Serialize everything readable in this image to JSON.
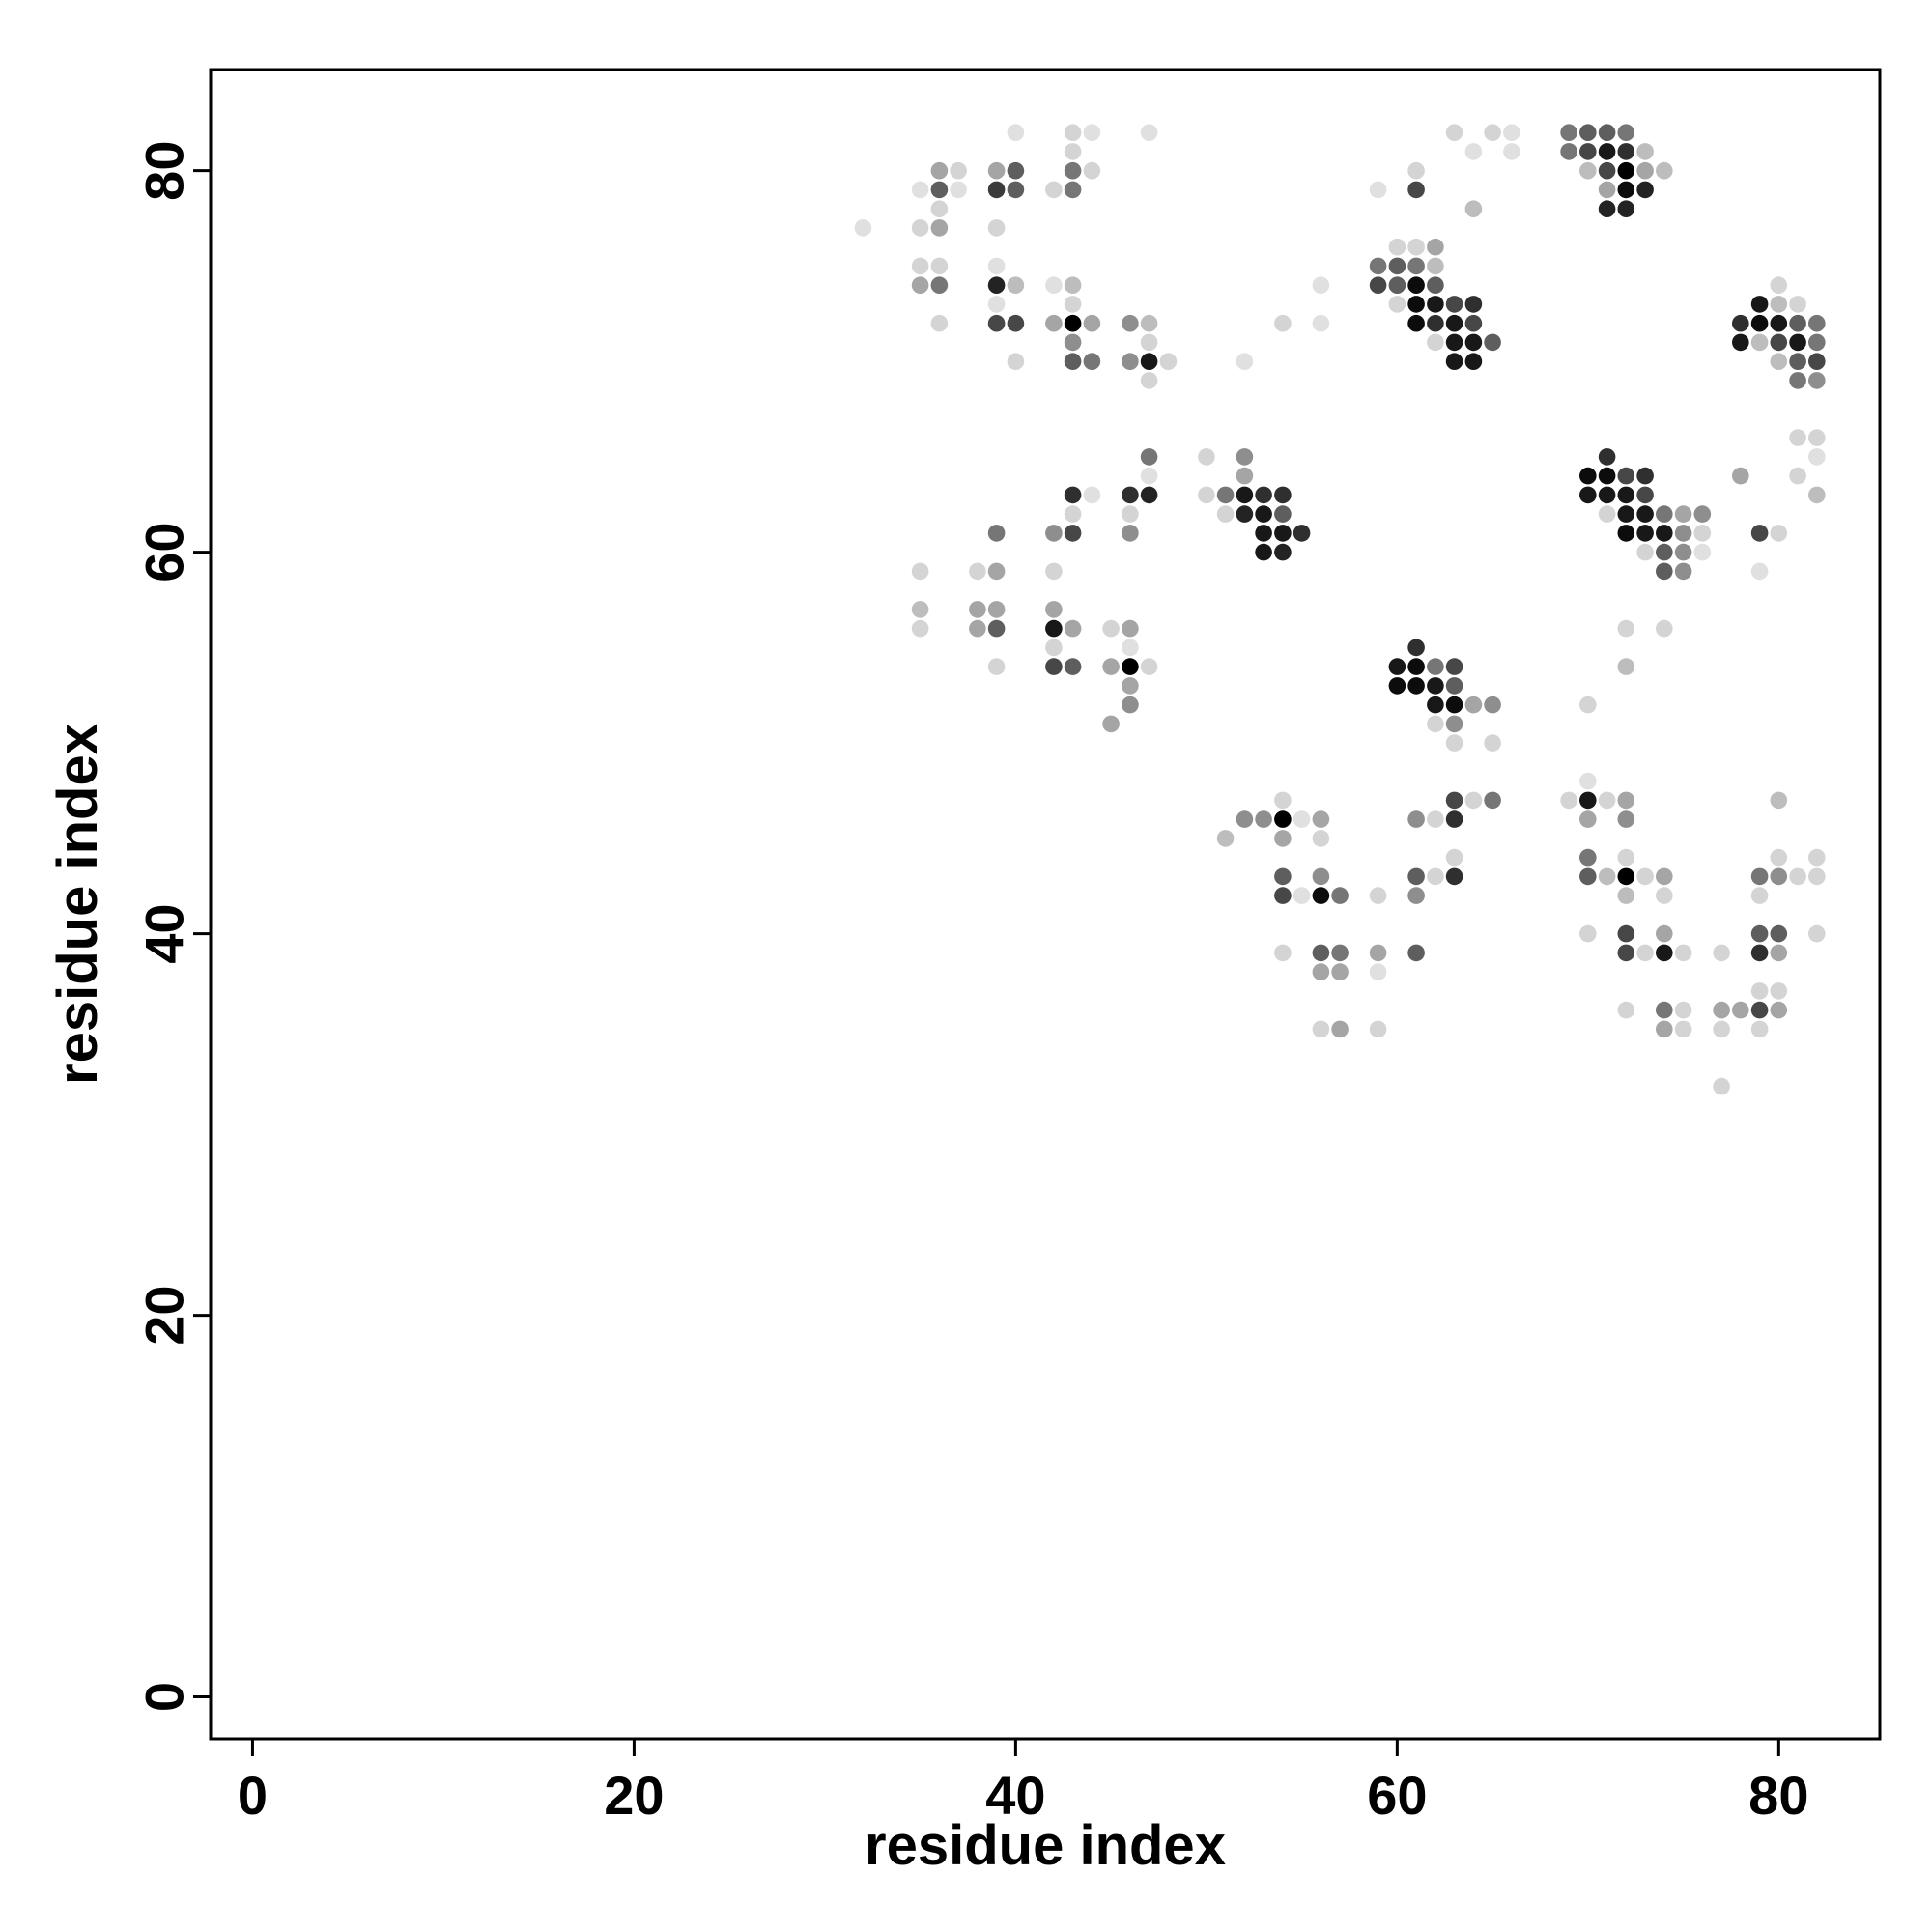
{
  "chart_data": {
    "type": "scatter",
    "title": "",
    "xlabel": "residue index",
    "ylabel": "residue index",
    "xlim": [
      -2.2,
      85.3
    ],
    "ylim": [
      -2.2,
      85.3
    ],
    "xticks": [
      0,
      20,
      40,
      60,
      80
    ],
    "yticks": [
      0,
      20,
      40,
      60,
      80
    ],
    "grid": false,
    "legend": "none",
    "color_scale": {
      "low": "#ececec",
      "high": "#000000",
      "value_range": [
        0,
        1
      ]
    },
    "points": [
      [
        32,
        77,
        0.05
      ],
      [
        35,
        79,
        0.05
      ],
      [
        36,
        80,
        0.3
      ],
      [
        37,
        80,
        0.1
      ],
      [
        36,
        79,
        0.6
      ],
      [
        37,
        79,
        0.05
      ],
      [
        36,
        78,
        0.1
      ],
      [
        35,
        77,
        0.1
      ],
      [
        36,
        77,
        0.3
      ],
      [
        35,
        75,
        0.1
      ],
      [
        36,
        75,
        0.1
      ],
      [
        35,
        74,
        0.3
      ],
      [
        36,
        74,
        0.5
      ],
      [
        36,
        72,
        0.1
      ],
      [
        40,
        82,
        0.05
      ],
      [
        39,
        80,
        0.3
      ],
      [
        40,
        80,
        0.6
      ],
      [
        39,
        79,
        0.75
      ],
      [
        40,
        79,
        0.6
      ],
      [
        39,
        77,
        0.1
      ],
      [
        39,
        75,
        0.05
      ],
      [
        39,
        74,
        0.85
      ],
      [
        40,
        74,
        0.2
      ],
      [
        39,
        73,
        0.05
      ],
      [
        39,
        72,
        0.7
      ],
      [
        40,
        72,
        0.7
      ],
      [
        40,
        70,
        0.1
      ],
      [
        43,
        82,
        0.1
      ],
      [
        44,
        82,
        0.05
      ],
      [
        43,
        81,
        0.1
      ],
      [
        43,
        80,
        0.5
      ],
      [
        44,
        80,
        0.1
      ],
      [
        42,
        79,
        0.1
      ],
      [
        43,
        79,
        0.5
      ],
      [
        42,
        74,
        0.05
      ],
      [
        43,
        74,
        0.2
      ],
      [
        43,
        73,
        0.1
      ],
      [
        42,
        72,
        0.3
      ],
      [
        43,
        72,
        1.0
      ],
      [
        44,
        72,
        0.3
      ],
      [
        43,
        71,
        0.4
      ],
      [
        43,
        70,
        0.6
      ],
      [
        44,
        70,
        0.5
      ],
      [
        47,
        82,
        0.05
      ],
      [
        46,
        72,
        0.4
      ],
      [
        47,
        72,
        0.2
      ],
      [
        47,
        71,
        0.1
      ],
      [
        46,
        70,
        0.4
      ],
      [
        47,
        70,
        0.9
      ],
      [
        48,
        70,
        0.1
      ],
      [
        47,
        69,
        0.1
      ],
      [
        63,
        82,
        0.1
      ],
      [
        65,
        82,
        0.1
      ],
      [
        66,
        82,
        0.05
      ],
      [
        64,
        81,
        0.05
      ],
      [
        66,
        81,
        0.05
      ],
      [
        61,
        80,
        0.1
      ],
      [
        59,
        79,
        0.05
      ],
      [
        61,
        79,
        0.7
      ],
      [
        64,
        78,
        0.2
      ],
      [
        69,
        82,
        0.5
      ],
      [
        70,
        82,
        0.6
      ],
      [
        71,
        82,
        0.6
      ],
      [
        72,
        82,
        0.5
      ],
      [
        69,
        81,
        0.5
      ],
      [
        70,
        81,
        0.7
      ],
      [
        71,
        81,
        0.9
      ],
      [
        72,
        81,
        0.8
      ],
      [
        73,
        81,
        0.2
      ],
      [
        70,
        80,
        0.2
      ],
      [
        71,
        80,
        0.7
      ],
      [
        72,
        80,
        1.0
      ],
      [
        73,
        80,
        0.3
      ],
      [
        74,
        80,
        0.2
      ],
      [
        71,
        79,
        0.3
      ],
      [
        72,
        79,
        0.95
      ],
      [
        73,
        79,
        0.85
      ],
      [
        71,
        78,
        0.85
      ],
      [
        72,
        78,
        0.85
      ],
      [
        60,
        76,
        0.1
      ],
      [
        61,
        76,
        0.1
      ],
      [
        62,
        76,
        0.3
      ],
      [
        59,
        75,
        0.5
      ],
      [
        60,
        75,
        0.6
      ],
      [
        61,
        75,
        0.5
      ],
      [
        62,
        75,
        0.2
      ],
      [
        59,
        74,
        0.7
      ],
      [
        60,
        74,
        0.6
      ],
      [
        61,
        74,
        0.95
      ],
      [
        62,
        74,
        0.6
      ],
      [
        60,
        73,
        0.1
      ],
      [
        61,
        73,
        0.95
      ],
      [
        62,
        73,
        0.9
      ],
      [
        63,
        73,
        0.7
      ],
      [
        64,
        73,
        0.8
      ],
      [
        61,
        72,
        0.95
      ],
      [
        62,
        72,
        0.8
      ],
      [
        63,
        72,
        0.9
      ],
      [
        64,
        72,
        0.7
      ],
      [
        62,
        71,
        0.1
      ],
      [
        63,
        71,
        0.9
      ],
      [
        64,
        71,
        0.9
      ],
      [
        65,
        71,
        0.6
      ],
      [
        63,
        70,
        0.9
      ],
      [
        64,
        70,
        0.9
      ],
      [
        56,
        74,
        0.05
      ],
      [
        54,
        72,
        0.1
      ],
      [
        56,
        72,
        0.05
      ],
      [
        52,
        70,
        0.05
      ],
      [
        80,
        74,
        0.1
      ],
      [
        79,
        73,
        0.9
      ],
      [
        80,
        73,
        0.2
      ],
      [
        81,
        73,
        0.1
      ],
      [
        78,
        72,
        0.8
      ],
      [
        79,
        72,
        0.95
      ],
      [
        80,
        72,
        0.9
      ],
      [
        81,
        72,
        0.6
      ],
      [
        82,
        72,
        0.5
      ],
      [
        78,
        71,
        0.9
      ],
      [
        79,
        71,
        0.2
      ],
      [
        80,
        71,
        0.7
      ],
      [
        81,
        71,
        0.9
      ],
      [
        82,
        71,
        0.5
      ],
      [
        80,
        70,
        0.2
      ],
      [
        81,
        70,
        0.6
      ],
      [
        82,
        70,
        0.7
      ],
      [
        81,
        69,
        0.5
      ],
      [
        82,
        69,
        0.4
      ],
      [
        47,
        65,
        0.5
      ],
      [
        47,
        64,
        0.05
      ],
      [
        44,
        63,
        0.05
      ],
      [
        43,
        63,
        0.8
      ],
      [
        46,
        63,
        0.8
      ],
      [
        47,
        63,
        0.85
      ],
      [
        43,
        62,
        0.1
      ],
      [
        46,
        62,
        0.1
      ],
      [
        39,
        61,
        0.5
      ],
      [
        42,
        61,
        0.4
      ],
      [
        43,
        61,
        0.7
      ],
      [
        46,
        61,
        0.4
      ],
      [
        38,
        59,
        0.1
      ],
      [
        39,
        59,
        0.3
      ],
      [
        42,
        59,
        0.1
      ],
      [
        35,
        59,
        0.1
      ],
      [
        35,
        57,
        0.2
      ],
      [
        38,
        57,
        0.3
      ],
      [
        39,
        57,
        0.3
      ],
      [
        42,
        57,
        0.3
      ],
      [
        35,
        56,
        0.1
      ],
      [
        38,
        56,
        0.3
      ],
      [
        39,
        56,
        0.6
      ],
      [
        42,
        56,
        0.9
      ],
      [
        43,
        56,
        0.3
      ],
      [
        45,
        56,
        0.1
      ],
      [
        46,
        56,
        0.3
      ],
      [
        42,
        55,
        0.1
      ],
      [
        46,
        55,
        0.05
      ],
      [
        39,
        54,
        0.1
      ],
      [
        42,
        54,
        0.7
      ],
      [
        43,
        54,
        0.6
      ],
      [
        45,
        54,
        0.3
      ],
      [
        46,
        54,
        1.0
      ],
      [
        47,
        54,
        0.1
      ],
      [
        46,
        53,
        0.3
      ],
      [
        46,
        52,
        0.4
      ],
      [
        45,
        51,
        0.3
      ],
      [
        50,
        65,
        0.1
      ],
      [
        52,
        65,
        0.4
      ],
      [
        52,
        64,
        0.3
      ],
      [
        50,
        63,
        0.1
      ],
      [
        51,
        63,
        0.5
      ],
      [
        52,
        63,
        0.9
      ],
      [
        53,
        63,
        0.8
      ],
      [
        54,
        63,
        0.8
      ],
      [
        51,
        62,
        0.1
      ],
      [
        52,
        62,
        0.85
      ],
      [
        53,
        62,
        0.9
      ],
      [
        54,
        62,
        0.6
      ],
      [
        53,
        61,
        0.9
      ],
      [
        54,
        61,
        0.9
      ],
      [
        55,
        61,
        0.8
      ],
      [
        53,
        60,
        0.9
      ],
      [
        54,
        60,
        0.85
      ],
      [
        71,
        65,
        0.8
      ],
      [
        70,
        64,
        0.95
      ],
      [
        71,
        64,
        0.95
      ],
      [
        72,
        64,
        0.7
      ],
      [
        73,
        64,
        0.8
      ],
      [
        70,
        63,
        0.9
      ],
      [
        71,
        63,
        0.9
      ],
      [
        72,
        63,
        0.9
      ],
      [
        73,
        63,
        0.7
      ],
      [
        71,
        62,
        0.1
      ],
      [
        72,
        62,
        0.9
      ],
      [
        73,
        62,
        0.9
      ],
      [
        74,
        62,
        0.5
      ],
      [
        75,
        62,
        0.3
      ],
      [
        76,
        62,
        0.4
      ],
      [
        72,
        61,
        0.95
      ],
      [
        73,
        61,
        0.9
      ],
      [
        74,
        61,
        0.9
      ],
      [
        75,
        61,
        0.4
      ],
      [
        76,
        61,
        0.1
      ],
      [
        73,
        60,
        0.1
      ],
      [
        74,
        60,
        0.6
      ],
      [
        75,
        60,
        0.4
      ],
      [
        76,
        60,
        0.05
      ],
      [
        74,
        59,
        0.6
      ],
      [
        75,
        59,
        0.4
      ],
      [
        72,
        56,
        0.1
      ],
      [
        74,
        56,
        0.1
      ],
      [
        72,
        54,
        0.2
      ],
      [
        70,
        52,
        0.1
      ],
      [
        78,
        64,
        0.3
      ],
      [
        81,
        66,
        0.1
      ],
      [
        82,
        66,
        0.1
      ],
      [
        82,
        65,
        0.05
      ],
      [
        81,
        64,
        0.1
      ],
      [
        82,
        63,
        0.2
      ],
      [
        79,
        61,
        0.7
      ],
      [
        80,
        61,
        0.1
      ],
      [
        79,
        59,
        0.05
      ],
      [
        60,
        54,
        0.9
      ],
      [
        61,
        54,
        0.95
      ],
      [
        62,
        54,
        0.5
      ],
      [
        63,
        54,
        0.7
      ],
      [
        61,
        55,
        0.8
      ],
      [
        60,
        53,
        0.95
      ],
      [
        61,
        53,
        0.95
      ],
      [
        62,
        53,
        0.9
      ],
      [
        63,
        53,
        0.6
      ],
      [
        62,
        52,
        0.9
      ],
      [
        63,
        52,
        0.95
      ],
      [
        64,
        52,
        0.3
      ],
      [
        65,
        52,
        0.4
      ],
      [
        62,
        51,
        0.1
      ],
      [
        63,
        51,
        0.4
      ],
      [
        63,
        50,
        0.1
      ],
      [
        65,
        50,
        0.1
      ],
      [
        51,
        45,
        0.2
      ],
      [
        52,
        46,
        0.4
      ],
      [
        53,
        46,
        0.4
      ],
      [
        54,
        46,
        1.0
      ],
      [
        54,
        47,
        0.1
      ],
      [
        55,
        46,
        0.05
      ],
      [
        56,
        46,
        0.3
      ],
      [
        54,
        45,
        0.3
      ],
      [
        56,
        45,
        0.1
      ],
      [
        54,
        43,
        0.6
      ],
      [
        56,
        43,
        0.4
      ],
      [
        54,
        42,
        0.7
      ],
      [
        55,
        42,
        0.05
      ],
      [
        56,
        42,
        0.95
      ],
      [
        57,
        42,
        0.5
      ],
      [
        54,
        39,
        0.1
      ],
      [
        56,
        39,
        0.6
      ],
      [
        57,
        39,
        0.5
      ],
      [
        56,
        38,
        0.3
      ],
      [
        57,
        38,
        0.3
      ],
      [
        56,
        35,
        0.1
      ],
      [
        57,
        35,
        0.3
      ],
      [
        59,
        42,
        0.1
      ],
      [
        59,
        39,
        0.3
      ],
      [
        59,
        38,
        0.05
      ],
      [
        59,
        35,
        0.1
      ],
      [
        61,
        46,
        0.4
      ],
      [
        62,
        46,
        0.1
      ],
      [
        63,
        47,
        0.7
      ],
      [
        64,
        47,
        0.1
      ],
      [
        65,
        47,
        0.5
      ],
      [
        63,
        46,
        0.8
      ],
      [
        63,
        44,
        0.1
      ],
      [
        61,
        43,
        0.6
      ],
      [
        62,
        43,
        0.1
      ],
      [
        63,
        43,
        0.8
      ],
      [
        61,
        42,
        0.4
      ],
      [
        61,
        39,
        0.6
      ],
      [
        69,
        47,
        0.1
      ],
      [
        70,
        47,
        0.9
      ],
      [
        71,
        47,
        0.1
      ],
      [
        72,
        47,
        0.3
      ],
      [
        70,
        48,
        0.05
      ],
      [
        70,
        46,
        0.3
      ],
      [
        72,
        46,
        0.4
      ],
      [
        70,
        44,
        0.5
      ],
      [
        72,
        44,
        0.1
      ],
      [
        70,
        43,
        0.6
      ],
      [
        71,
        43,
        0.2
      ],
      [
        72,
        43,
        1.0
      ],
      [
        73,
        43,
        0.1
      ],
      [
        74,
        43,
        0.3
      ],
      [
        72,
        42,
        0.2
      ],
      [
        74,
        42,
        0.1
      ],
      [
        70,
        40,
        0.1
      ],
      [
        72,
        40,
        0.7
      ],
      [
        74,
        40,
        0.3
      ],
      [
        72,
        39,
        0.7
      ],
      [
        73,
        39,
        0.1
      ],
      [
        74,
        39,
        0.9
      ],
      [
        75,
        39,
        0.1
      ],
      [
        72,
        36,
        0.1
      ],
      [
        74,
        36,
        0.5
      ],
      [
        75,
        36,
        0.1
      ],
      [
        74,
        35,
        0.3
      ],
      [
        75,
        35,
        0.1
      ],
      [
        80,
        47,
        0.2
      ],
      [
        80,
        44,
        0.1
      ],
      [
        82,
        44,
        0.1
      ],
      [
        79,
        43,
        0.5
      ],
      [
        80,
        43,
        0.4
      ],
      [
        81,
        43,
        0.1
      ],
      [
        82,
        43,
        0.1
      ],
      [
        79,
        42,
        0.1
      ],
      [
        79,
        40,
        0.6
      ],
      [
        80,
        40,
        0.6
      ],
      [
        82,
        40,
        0.1
      ],
      [
        79,
        39,
        0.8
      ],
      [
        80,
        39,
        0.3
      ],
      [
        77,
        39,
        0.1
      ],
      [
        79,
        37,
        0.1
      ],
      [
        80,
        37,
        0.1
      ],
      [
        77,
        36,
        0.3
      ],
      [
        78,
        36,
        0.3
      ],
      [
        79,
        36,
        0.7
      ],
      [
        80,
        36,
        0.3
      ],
      [
        77,
        35,
        0.1
      ],
      [
        79,
        35,
        0.1
      ],
      [
        77,
        32,
        0.1
      ]
    ]
  }
}
